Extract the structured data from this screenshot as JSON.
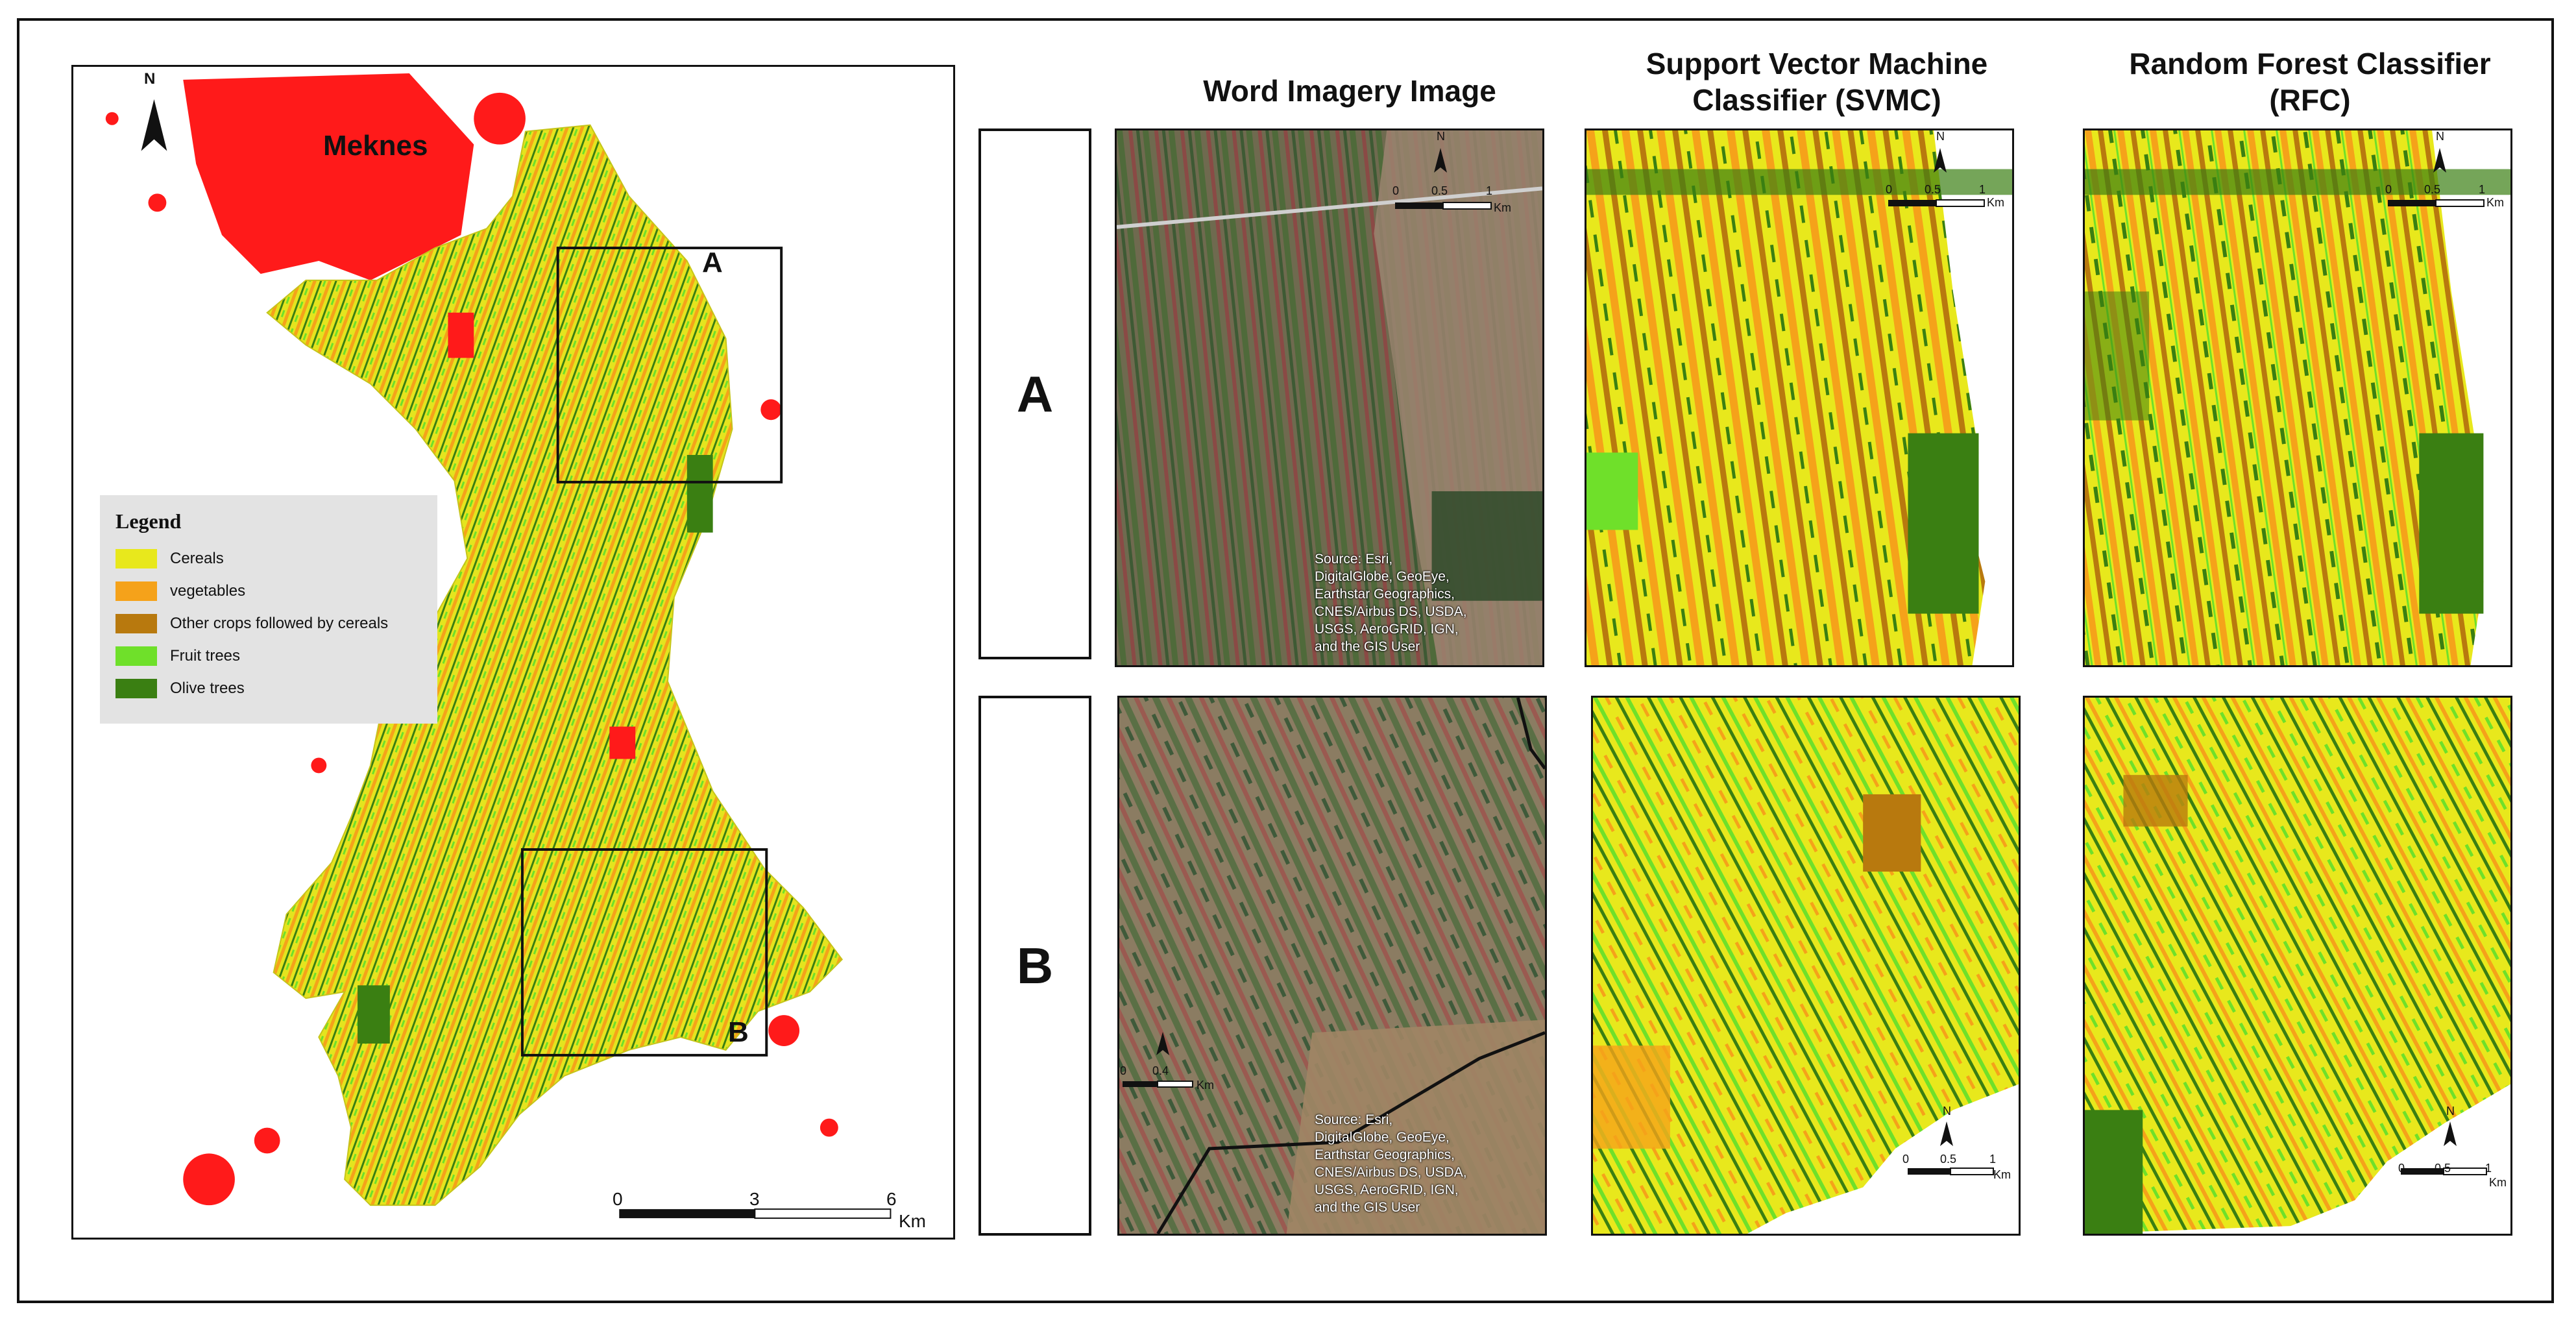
{
  "columns": {
    "imagery": "Word Imagery Image",
    "svmc_line1": "Support Vector Machine",
    "svmc_line2": "Classifier (SVMC)",
    "rfc_line1": "Random Forest Classifier",
    "rfc_line2": "(RFC)"
  },
  "rows": [
    "A",
    "B"
  ],
  "overview": {
    "city_label": "Meknes",
    "north_label": "N",
    "box_a_label": "A",
    "box_b_label": "B",
    "scale_ticks": [
      "0",
      "3",
      "6"
    ],
    "scale_unit": "Km"
  },
  "legend": {
    "title": "Legend",
    "items": [
      {
        "label": "Cereals",
        "color": "#e8e81c"
      },
      {
        "label": "vegetables",
        "color": "#f5a21a"
      },
      {
        "label": "Other crops followed by cereals",
        "color": "#b8790e"
      },
      {
        "label": "Fruit trees",
        "color": "#6fe02a"
      },
      {
        "label": "Olive trees",
        "color": "#3a7f12"
      }
    ]
  },
  "detail_scale": {
    "ticks": [
      "0",
      "0.5",
      "1"
    ],
    "unit": "Km",
    "north_label": "N"
  },
  "imagery_b_scale": {
    "ticks": [
      "0",
      "0.4"
    ],
    "unit": "Km"
  },
  "imagery_source": "Source: Esri,\nDigitalGlobe, GeoEye,\nEarthstar Geographics,\nCNES/Airbus DS, USDA,\nUSGS, AeroGRID, IGN,\nand the GIS User",
  "colors": {
    "cereals": "#e8e81c",
    "vegetables": "#f5a21a",
    "other_crops": "#b8790e",
    "fruit_trees": "#6fe02a",
    "olive_trees": "#3a7f12",
    "urban": "#ff1a1a"
  }
}
